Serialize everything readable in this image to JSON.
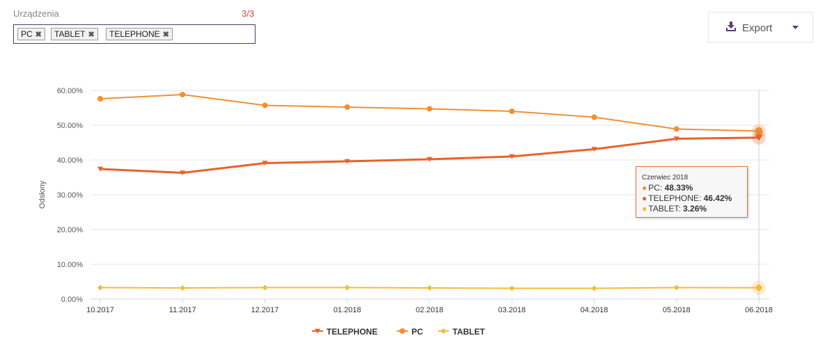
{
  "filter": {
    "label": "Urządzenia",
    "count": "3/3",
    "tags": [
      "PC",
      "TABLET",
      "TELEPHONE"
    ]
  },
  "export": {
    "label": "Export",
    "icon": "download-icon"
  },
  "tooltip": {
    "title": "Czerwiec 2018",
    "rows": [
      {
        "name": "PC",
        "value": "48.33%",
        "color": "#f28f33"
      },
      {
        "name": "TELEPHONE",
        "value": "46.42%",
        "color": "#e8622a"
      },
      {
        "name": "TABLET",
        "value": "3.26%",
        "color": "#f5b93a"
      }
    ]
  },
  "chart_data": {
    "type": "line",
    "ylabel": "Odsłony",
    "xlabel": "",
    "categories": [
      "10.2017",
      "11.2017",
      "12.2017",
      "01.2018",
      "02.2018",
      "03.2018",
      "04.2018",
      "05.2018",
      "06.2018"
    ],
    "yticks": [
      "0.00%",
      "10.00%",
      "20.00%",
      "30.00%",
      "40.00%",
      "50.00%",
      "60.00%"
    ],
    "ylim": [
      0,
      60
    ],
    "grid": true,
    "legend_position": "bottom",
    "series": [
      {
        "name": "TELEPHONE",
        "color": "#e8622a",
        "marker": "triangle-down",
        "values": [
          37.4,
          36.3,
          39.1,
          39.6,
          40.2,
          41.0,
          43.1,
          46.1,
          46.42
        ]
      },
      {
        "name": "PC",
        "color": "#f28f33",
        "marker": "circle",
        "values": [
          57.6,
          58.8,
          55.7,
          55.2,
          54.7,
          54.0,
          52.3,
          48.9,
          48.33
        ]
      },
      {
        "name": "TABLET",
        "color": "#f5b93a",
        "marker": "diamond",
        "values": [
          3.3,
          3.2,
          3.3,
          3.3,
          3.2,
          3.1,
          3.1,
          3.3,
          3.26
        ]
      }
    ]
  }
}
